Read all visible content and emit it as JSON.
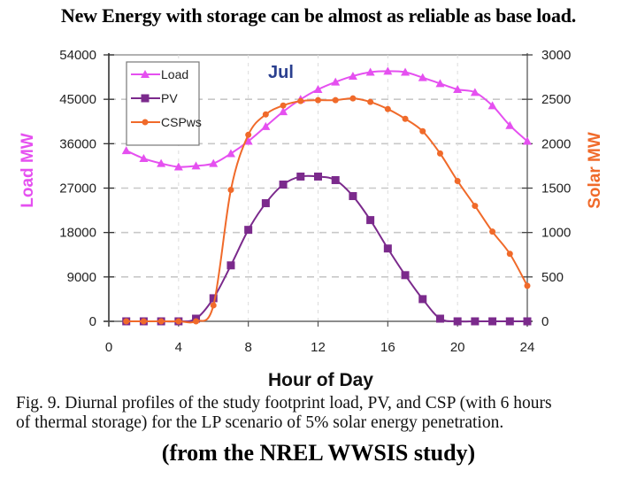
{
  "headline": "New Energy with storage can be almost as reliable as base load.",
  "caption": {
    "line1": "Fig. 9. Diurnal profiles of the study footprint load, PV, and CSP (with 6 hours",
    "line2": "of thermal storage) for the LP scenario of 5% solar energy penetration."
  },
  "source": "(from the NREL WWSIS study)",
  "colors": {
    "load": "#e550f0",
    "pv": "#7b2a8c",
    "csp": "#f06a2a",
    "annotation": "#2a3f8f",
    "grid": "#c8c8c8"
  },
  "chart_data": {
    "type": "line",
    "title": "",
    "annotation": "Jul",
    "xlabel": "Hour of Day",
    "ylabel_left": "Load MW",
    "ylabel_right": "Solar MW",
    "xlim": [
      0,
      24
    ],
    "xticks": [
      0,
      4,
      8,
      12,
      16,
      20,
      24
    ],
    "xtick_labels": [
      "0",
      "4",
      "8",
      "12",
      "16",
      "20",
      "24"
    ],
    "ylim_left": [
      0,
      54000
    ],
    "yticks_left": [
      0,
      9000,
      18000,
      27000,
      36000,
      45000,
      54000
    ],
    "ytick_labels_left": [
      "0",
      "9000",
      "18000",
      "27000",
      "36000",
      "45000",
      "54000"
    ],
    "ylim_right": [
      0,
      3000
    ],
    "yticks_right": [
      0,
      500,
      1000,
      1500,
      2000,
      2500,
      3000
    ],
    "ytick_labels_right": [
      "0",
      "500",
      "1000",
      "1500",
      "2000",
      "2500",
      "3000"
    ],
    "grid": "dashed horizontal + dashed vertical at x ticks",
    "legend": {
      "placement": "top-left",
      "entries": [
        "Load",
        "PV",
        "CSPws"
      ]
    },
    "x": [
      1,
      2,
      3,
      4,
      5,
      6,
      7,
      8,
      9,
      10,
      11,
      12,
      13,
      14,
      15,
      16,
      17,
      18,
      19,
      20,
      21,
      22,
      23,
      24
    ],
    "series": [
      {
        "name": "Load",
        "axis": "left",
        "marker": "triangle",
        "color_key": "load",
        "values": [
          34600,
          33000,
          32000,
          31300,
          31500,
          32000,
          34000,
          36500,
          39500,
          42500,
          45000,
          47000,
          48500,
          49700,
          50500,
          50700,
          50500,
          49400,
          48200,
          47000,
          46400,
          43700,
          39700,
          36500
        ]
      },
      {
        "name": "PV",
        "axis": "right",
        "marker": "square",
        "color_key": "pv",
        "values": [
          0,
          0,
          0,
          0,
          30,
          260,
          630,
          1030,
          1330,
          1540,
          1630,
          1630,
          1590,
          1410,
          1140,
          820,
          520,
          250,
          30,
          0,
          0,
          0,
          0,
          0
        ]
      },
      {
        "name": "CSPws",
        "axis": "right",
        "marker": "diamond",
        "color_key": "csp",
        "values": [
          0,
          0,
          0,
          0,
          0,
          180,
          1480,
          2100,
          2330,
          2430,
          2480,
          2490,
          2490,
          2510,
          2470,
          2390,
          2280,
          2140,
          1890,
          1580,
          1300,
          1010,
          760,
          400
        ]
      }
    ]
  }
}
